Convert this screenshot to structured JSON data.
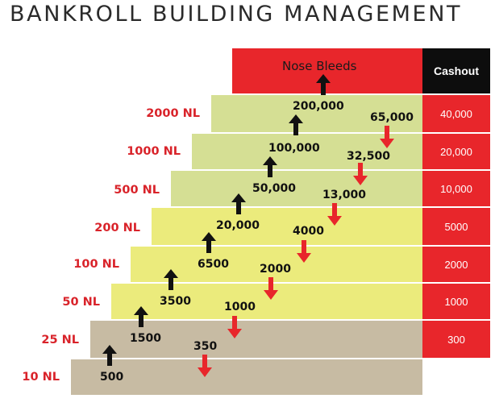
{
  "title": "BANKROLL BUILDING MANAGEMENT",
  "top_tier": "Nose Bleeds",
  "cashout_header": "Cashout",
  "colors": {
    "red": "#e8262b",
    "olive": "#d5df94",
    "yellow": "#ebeb7c",
    "tan": "#c7bba3",
    "dark": "#0d0d0d"
  },
  "levels": [
    {
      "stake": "10 NL",
      "move_up": "500",
      "move_down": "",
      "cashout": ""
    },
    {
      "stake": "25 NL",
      "move_up": "1500",
      "move_down": "350",
      "cashout": "300"
    },
    {
      "stake": "50 NL",
      "move_up": "3500",
      "move_down": "1000",
      "cashout": "1000"
    },
    {
      "stake": "100 NL",
      "move_up": "6500",
      "move_down": "2000",
      "cashout": "2000"
    },
    {
      "stake": "200 NL",
      "move_up": "20,000",
      "move_down": "4000",
      "cashout": "5000"
    },
    {
      "stake": "500 NL",
      "move_up": "50,000",
      "move_down": "13,000",
      "cashout": "10,000"
    },
    {
      "stake": "1000 NL",
      "move_up": "100,000",
      "move_down": "32,500",
      "cashout": "20,000"
    },
    {
      "stake": "2000 NL",
      "move_up": "200,000",
      "move_down": "65,000",
      "cashout": "40,000"
    }
  ]
}
